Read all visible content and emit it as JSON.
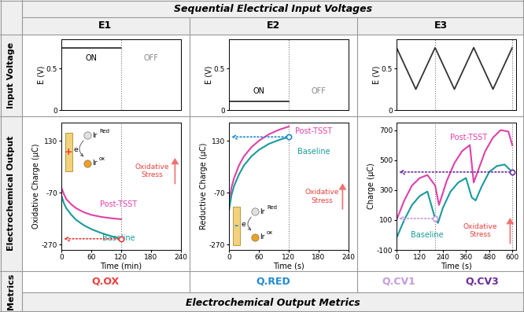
{
  "header": {
    "title": "Sequential Electrical Input Voltages",
    "columns": [
      "E1",
      "E2",
      "E3"
    ]
  },
  "row_labels": [
    "Input Voltage",
    "Electrochemical Output",
    "Metrics"
  ],
  "metrics": {
    "title": "Electrochemical Output Metrics",
    "columns": [
      [
        {
          "label": "Q.OX",
          "color": "#e8403c"
        }
      ],
      [
        {
          "label": "Q.RED",
          "color": "#1f8ad0"
        }
      ],
      [
        {
          "label": "Q.CV1",
          "color": "#c39be0"
        },
        {
          "label": "Q.CV3",
          "color": "#6a2c9a"
        }
      ]
    ]
  },
  "chart_data": [
    {
      "type": "line",
      "ylabel": "E (V)",
      "xlim": [
        0,
        240
      ],
      "ylim": [
        0,
        0.85
      ],
      "yticks": [
        0,
        0.5
      ],
      "tick_labels": "y",
      "annotations": {
        "on": "ON",
        "off": "OFF"
      },
      "series": [
        {
          "x": [
            0,
            120
          ],
          "values": [
            0.75,
            0.75
          ],
          "color": "#333333"
        }
      ]
    },
    {
      "type": "line",
      "ylabel": "E (V)",
      "xlim": [
        0,
        240
      ],
      "ylim": [
        0,
        0.85
      ],
      "yticks": [
        0,
        0.5
      ],
      "tick_labels": "y",
      "annotations": {
        "on": "ON",
        "off": "OFF"
      },
      "series": [
        {
          "x": [
            0,
            120
          ],
          "values": [
            0.1,
            0.1
          ],
          "color": "#333333"
        }
      ]
    },
    {
      "type": "line",
      "ylabel": "E (V)",
      "xlim": [
        0,
        620
      ],
      "ylim": [
        0,
        0.85
      ],
      "yticks": [
        0,
        0.5
      ],
      "tick_labels": "y",
      "series": [
        {
          "x": [
            0,
            100,
            200,
            300,
            400,
            500,
            600
          ],
          "values": [
            0.75,
            0.25,
            0.75,
            0.25,
            0.75,
            0.25,
            0.75
          ],
          "color": "#333333"
        }
      ]
    },
    {
      "type": "line",
      "xlabel": "Time (min)",
      "ylabel": "Oxidative Charge (μC)",
      "xlim": [
        0,
        240
      ],
      "ylim": [
        -290,
        200
      ],
      "xticks": [
        0,
        60,
        120,
        180,
        240
      ],
      "yticks": [
        130,
        -70,
        -270
      ],
      "annotation": "Oxidative\nStress",
      "inset": {
        "sign": "+",
        "sign_color": "#e8403c",
        "electron": "e",
        "reduced": [
          "Ir",
          "Red"
        ],
        "oxidized": [
          "Ir",
          "ox"
        ]
      },
      "series": [
        {
          "name": "Post-TSST",
          "color": "#e040a8",
          "x": [
            0,
            5,
            10,
            20,
            30,
            45,
            60,
            80,
            100,
            120
          ],
          "values": [
            -50,
            -75,
            -95,
            -115,
            -130,
            -145,
            -155,
            -163,
            -168,
            -172
          ]
        },
        {
          "name": "Baseline",
          "color": "#1a9a9a",
          "x": [
            0,
            5,
            10,
            20,
            30,
            45,
            60,
            80,
            100,
            120
          ],
          "values": [
            -80,
            -110,
            -130,
            -155,
            -175,
            -195,
            -210,
            -225,
            -237,
            -247
          ]
        }
      ],
      "markers": [
        {
          "x": 120,
          "y": -247,
          "color": "#e8403c"
        }
      ]
    },
    {
      "type": "line",
      "xlabel": "Time (s)",
      "ylabel": "Reductive Charge (μC)",
      "xlim": [
        0,
        240
      ],
      "ylim": [
        -290,
        200
      ],
      "xticks": [
        0,
        60,
        120,
        180,
        240
      ],
      "yticks": [
        130,
        -70,
        -270
      ],
      "annotation": "Oxidative\nStress",
      "inset": {
        "sign": "-",
        "sign_color": "#1f8ad0",
        "electron": "e",
        "reduced": [
          "Ir",
          "Red"
        ],
        "oxidized": [
          "Ir",
          "ox"
        ]
      },
      "series": [
        {
          "name": "Post-TSST",
          "color": "#e040a8",
          "x": [
            0,
            5,
            10,
            20,
            30,
            45,
            60,
            80,
            100,
            120
          ],
          "values": [
            -110,
            -50,
            -15,
            35,
            70,
            105,
            130,
            155,
            172,
            185
          ]
        },
        {
          "name": "Baseline",
          "color": "#1a9a9a",
          "x": [
            0,
            5,
            10,
            20,
            30,
            45,
            60,
            80,
            100,
            120
          ],
          "values": [
            -140,
            -80,
            -45,
            0,
            35,
            70,
            95,
            118,
            133,
            145
          ]
        }
      ],
      "markers": [
        {
          "x": 120,
          "y": 145,
          "color": "#1f8ad0"
        }
      ]
    },
    {
      "type": "line",
      "xlabel": "Time (s)",
      "ylabel": "Charge (μC)",
      "xlim": [
        0,
        620
      ],
      "ylim": [
        -100,
        750
      ],
      "xticks": [
        0,
        120,
        240,
        360,
        480,
        600
      ],
      "yticks": [
        -100,
        100,
        300,
        500,
        700
      ],
      "annotation": "Oxidative\nStress",
      "series": [
        {
          "name": "Post-TSST",
          "color": "#e040a8",
          "x": [
            0,
            40,
            80,
            120,
            160,
            200,
            220,
            260,
            300,
            340,
            380,
            400,
            420,
            460,
            500,
            540,
            580,
            600
          ],
          "values": [
            100,
            230,
            330,
            380,
            400,
            330,
            200,
            360,
            480,
            560,
            600,
            350,
            420,
            560,
            650,
            700,
            690,
            600
          ]
        },
        {
          "name": "Baseline",
          "color": "#1a9a9a",
          "x": [
            0,
            40,
            80,
            120,
            160,
            200,
            215,
            240,
            280,
            320,
            360,
            390,
            410,
            440,
            480,
            520,
            560,
            600
          ],
          "values": [
            -20,
            100,
            200,
            260,
            290,
            110,
            80,
            180,
            290,
            350,
            380,
            250,
            230,
            320,
            420,
            460,
            470,
            420
          ]
        }
      ],
      "markers": [
        {
          "x": 200,
          "y": 110,
          "color": "#c39be0"
        },
        {
          "x": 600,
          "y": 420,
          "color": "#6a2c9a"
        }
      ]
    }
  ]
}
